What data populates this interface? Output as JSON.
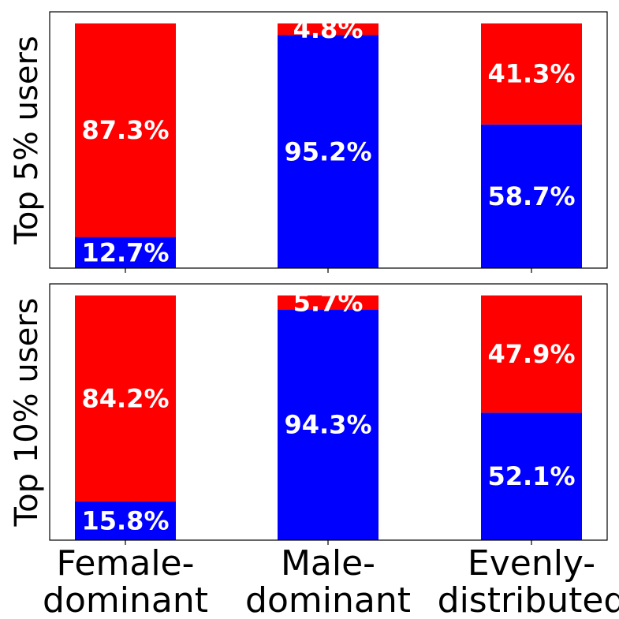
{
  "chart_data": {
    "type": "bar",
    "stacked": true,
    "normalized": true,
    "categories": [
      [
        "Female-",
        "dominant"
      ],
      [
        "Male-",
        "dominant"
      ],
      [
        "Evenly-",
        "distributed"
      ]
    ],
    "colors": {
      "bottom": "#0000ff",
      "top": "#ff0000",
      "label": "#ffffff"
    },
    "panels": [
      {
        "ylabel": "Top 5% users",
        "ylim": [
          0,
          100
        ],
        "bottom_values": [
          12.7,
          95.2,
          58.7
        ],
        "top_values": [
          87.3,
          4.8,
          41.3
        ],
        "bottom_labels": [
          "12.7%",
          "95.2%",
          "58.7%"
        ],
        "top_labels": [
          "87.3%",
          "4.8%",
          "41.3%"
        ]
      },
      {
        "ylabel": "Top 10% users",
        "ylim": [
          0,
          100
        ],
        "bottom_values": [
          15.8,
          94.3,
          52.1
        ],
        "top_values": [
          84.2,
          5.7,
          47.9
        ],
        "bottom_labels": [
          "15.8%",
          "94.3%",
          "52.1%"
        ],
        "top_labels": [
          "84.2%",
          "5.7%",
          "47.9%"
        ]
      }
    ],
    "grid": false,
    "legend": "none"
  }
}
